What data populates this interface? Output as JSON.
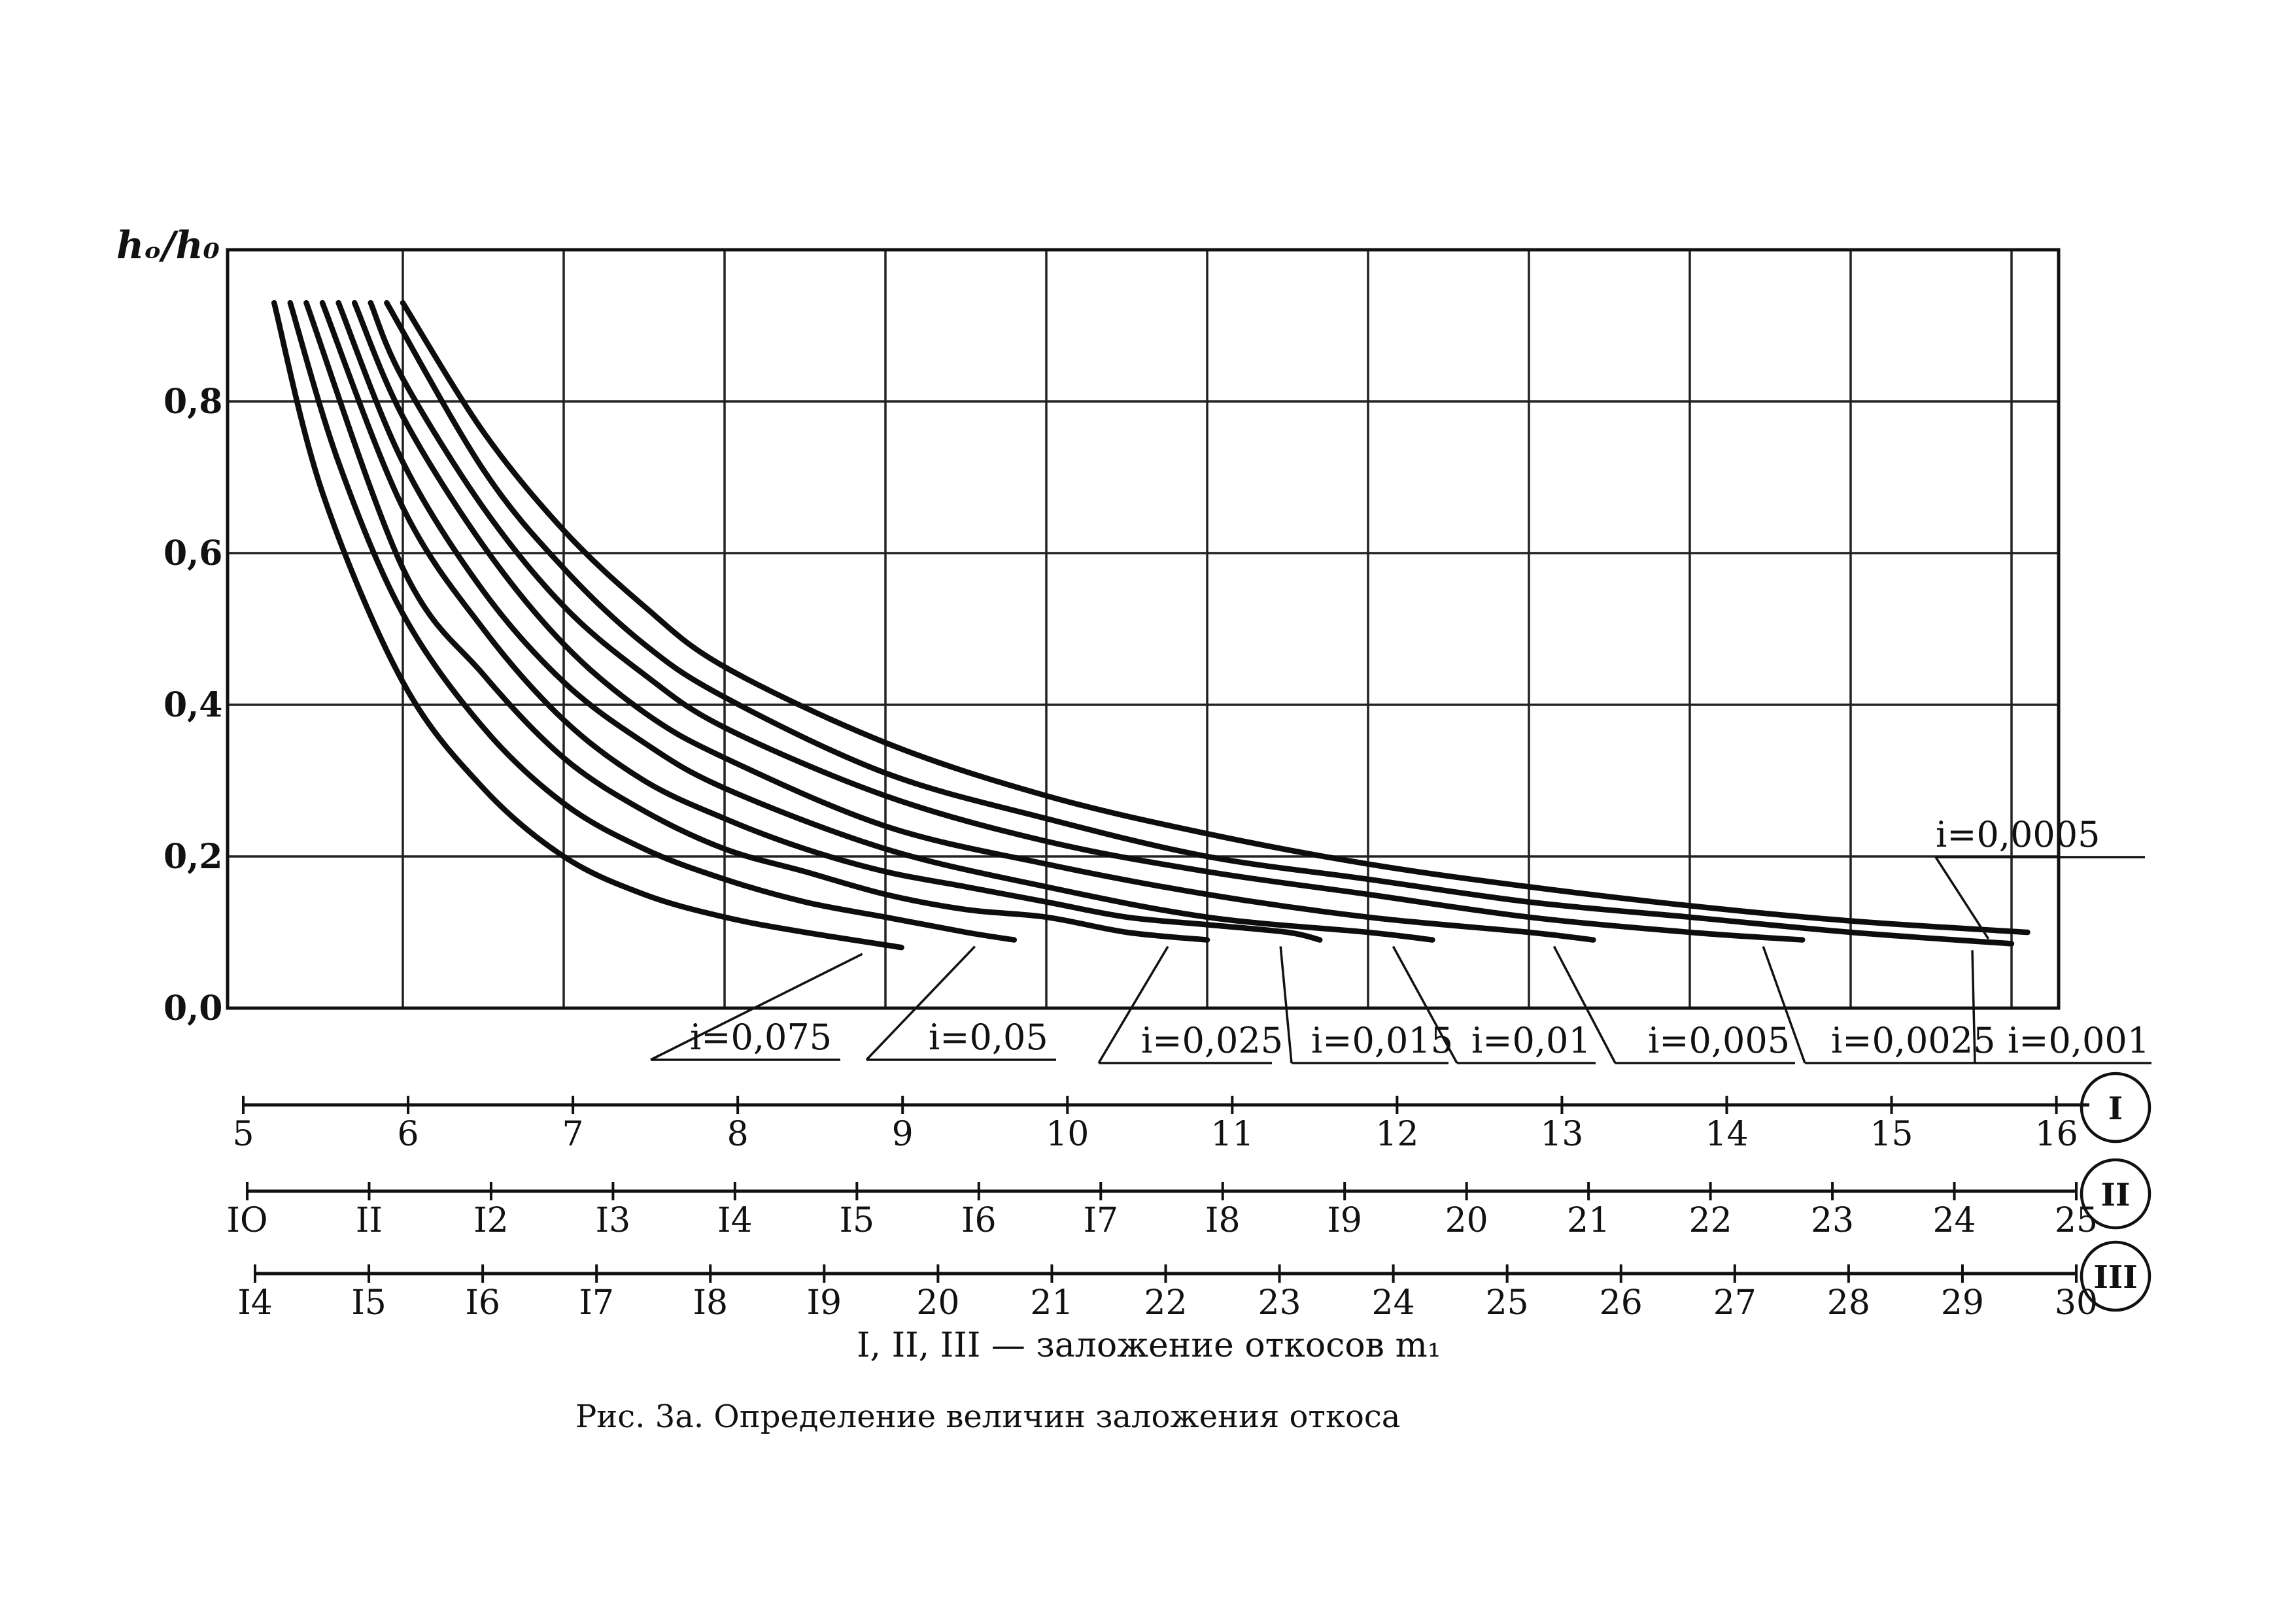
{
  "chart_data": {
    "type": "line",
    "y_label": "hₒ/h₀",
    "y_ticks": [
      "0,0",
      "0,2",
      "0,4",
      "0,6",
      "0,8"
    ],
    "ylim": [
      0,
      0.95
    ],
    "xlim": [
      5,
      16.3
    ],
    "grid": true,
    "series": [
      {
        "name": "i=0,075",
        "x": [
          5.2,
          5.5,
          6.0,
          6.5,
          7.0,
          7.5,
          8.0,
          8.5,
          9.1
        ],
        "y": [
          0.93,
          0.68,
          0.43,
          0.29,
          0.2,
          0.15,
          0.12,
          0.1,
          0.08
        ]
      },
      {
        "name": "i=0,05",
        "x": [
          5.3,
          5.6,
          6.0,
          6.5,
          7.0,
          7.5,
          8.0,
          8.5,
          9.0,
          9.5,
          9.8
        ],
        "y": [
          0.93,
          0.72,
          0.52,
          0.37,
          0.27,
          0.21,
          0.17,
          0.14,
          0.12,
          0.1,
          0.09
        ]
      },
      {
        "name": "i=0,025",
        "x": [
          5.4,
          6.0,
          6.5,
          7.0,
          7.5,
          8.0,
          8.5,
          9.0,
          9.5,
          10.0,
          10.5,
          11.0
        ],
        "y": [
          0.93,
          0.58,
          0.44,
          0.33,
          0.26,
          0.21,
          0.18,
          0.15,
          0.13,
          0.12,
          0.1,
          0.09
        ]
      },
      {
        "name": "i=0,015",
        "x": [
          5.5,
          6.0,
          6.5,
          7.0,
          7.5,
          8.0,
          8.5,
          9.0,
          9.5,
          10.0,
          10.5,
          11.0,
          11.5,
          11.7
        ],
        "y": [
          0.93,
          0.66,
          0.5,
          0.38,
          0.3,
          0.25,
          0.21,
          0.18,
          0.16,
          0.14,
          0.12,
          0.11,
          0.1,
          0.09
        ]
      },
      {
        "name": "i=0,01",
        "x": [
          5.6,
          6.0,
          6.5,
          7.0,
          7.5,
          8.0,
          9.0,
          10.0,
          11.0,
          12.0,
          12.4
        ],
        "y": [
          0.93,
          0.72,
          0.55,
          0.43,
          0.35,
          0.29,
          0.21,
          0.16,
          0.12,
          0.1,
          0.09
        ]
      },
      {
        "name": "i=0,005",
        "x": [
          5.7,
          6.0,
          6.5,
          7.0,
          7.5,
          8.0,
          9.0,
          10.0,
          11.0,
          12.0,
          13.0,
          13.4
        ],
        "y": [
          0.93,
          0.78,
          0.61,
          0.48,
          0.39,
          0.33,
          0.24,
          0.19,
          0.15,
          0.12,
          0.1,
          0.09
        ]
      },
      {
        "name": "i=0,0025",
        "x": [
          5.8,
          6.0,
          6.5,
          7.0,
          7.5,
          8.0,
          9.0,
          10.0,
          11.0,
          12.0,
          13.0,
          14.0,
          14.7
        ],
        "y": [
          0.93,
          0.83,
          0.66,
          0.53,
          0.44,
          0.37,
          0.28,
          0.22,
          0.18,
          0.15,
          0.12,
          0.1,
          0.09
        ]
      },
      {
        "name": "i=0,001",
        "x": [
          5.9,
          6.5,
          7.0,
          7.5,
          8.0,
          9.0,
          10.0,
          11.0,
          12.0,
          13.0,
          14.0,
          15.0,
          16.0
        ],
        "y": [
          0.93,
          0.71,
          0.58,
          0.48,
          0.41,
          0.31,
          0.25,
          0.2,
          0.17,
          0.14,
          0.12,
          0.1,
          0.085
        ]
      },
      {
        "name": "i=0,0005",
        "x": [
          6.0,
          6.5,
          7.0,
          7.5,
          8.0,
          9.0,
          10.0,
          11.0,
          12.0,
          13.0,
          14.0,
          15.0,
          16.1
        ],
        "y": [
          0.93,
          0.76,
          0.63,
          0.53,
          0.45,
          0.35,
          0.28,
          0.23,
          0.19,
          0.16,
          0.135,
          0.115,
          0.1
        ]
      }
    ],
    "scales": [
      {
        "roman": "I",
        "labels": [
          "5",
          "6",
          "7",
          "8",
          "9",
          "10",
          "11",
          "12",
          "13",
          "14",
          "15",
          "16"
        ],
        "values": [
          5,
          6,
          7,
          8,
          9,
          10,
          11,
          12,
          13,
          14,
          15,
          16
        ]
      },
      {
        "roman": "II",
        "labels": [
          "IO",
          "II",
          "I2",
          "I3",
          "I4",
          "I5",
          "I6",
          "I7",
          "I8",
          "I9",
          "20",
          "21",
          "22",
          "23",
          "24",
          "25"
        ],
        "values": [
          10,
          11,
          12,
          13,
          14,
          15,
          16,
          17,
          18,
          19,
          20,
          21,
          22,
          23,
          24,
          25
        ]
      },
      {
        "roman": "III",
        "labels": [
          "I4",
          "I5",
          "I6",
          "I7",
          "I8",
          "I9",
          "20",
          "21",
          "22",
          "23",
          "24",
          "25",
          "26",
          "27",
          "28",
          "29",
          "30"
        ],
        "values": [
          14,
          15,
          16,
          17,
          18,
          19,
          20,
          21,
          22,
          23,
          24,
          25,
          26,
          27,
          28,
          29,
          30
        ]
      }
    ],
    "x_title": "I, II, III — заложение откосов m₁"
  },
  "figure": {
    "caption": "Рис. 3а. Определение величин заложения откоса"
  },
  "colors": {
    "ink": "#111111",
    "paper": "#ffffff"
  }
}
